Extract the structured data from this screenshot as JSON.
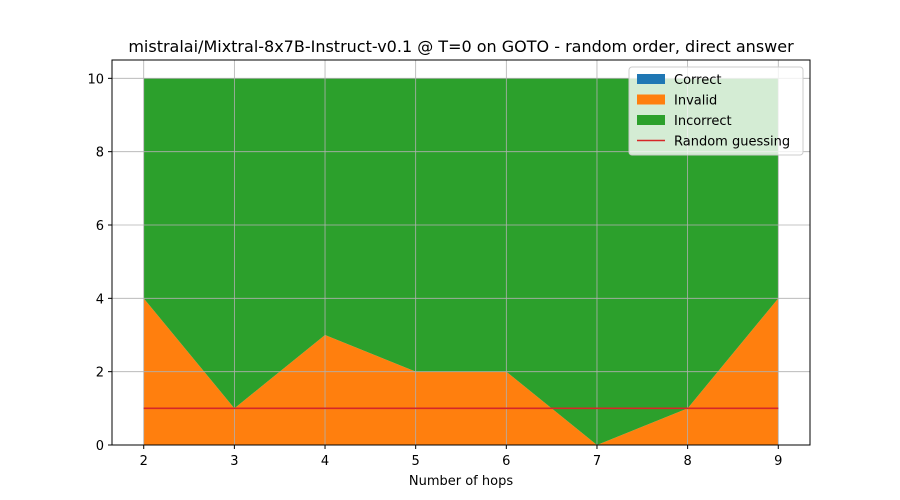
{
  "chart_data": {
    "type": "area",
    "title": "mistralai/Mixtral-8x7B-Instruct-v0.1 @ T=0 on GOTO - random order, direct answer",
    "xlabel": "Number of hops",
    "ylabel": "",
    "x": [
      2,
      3,
      4,
      5,
      6,
      7,
      8,
      9
    ],
    "xlim": [
      1.65,
      9.35
    ],
    "ylim": [
      0,
      10.5
    ],
    "xticks": [
      "2",
      "3",
      "4",
      "5",
      "6",
      "7",
      "8",
      "9"
    ],
    "yticks": [
      "0",
      "2",
      "4",
      "6",
      "8",
      "10"
    ],
    "grid": true,
    "legend_position": "top-right",
    "stacked": true,
    "series": [
      {
        "name": "Correct",
        "color": "#1f77b4",
        "values": [
          0,
          0,
          0,
          0,
          0,
          0,
          0,
          0
        ]
      },
      {
        "name": "Invalid",
        "color": "#ff7f0e",
        "values": [
          4,
          1,
          3,
          2,
          2,
          0,
          1,
          4
        ]
      },
      {
        "name": "Incorrect",
        "color": "#2ca02c",
        "values": [
          6,
          9,
          7,
          8,
          8,
          10,
          9,
          6
        ]
      }
    ],
    "reference_line": {
      "name": "Random guessing",
      "color": "#d62728",
      "value": 1
    }
  }
}
